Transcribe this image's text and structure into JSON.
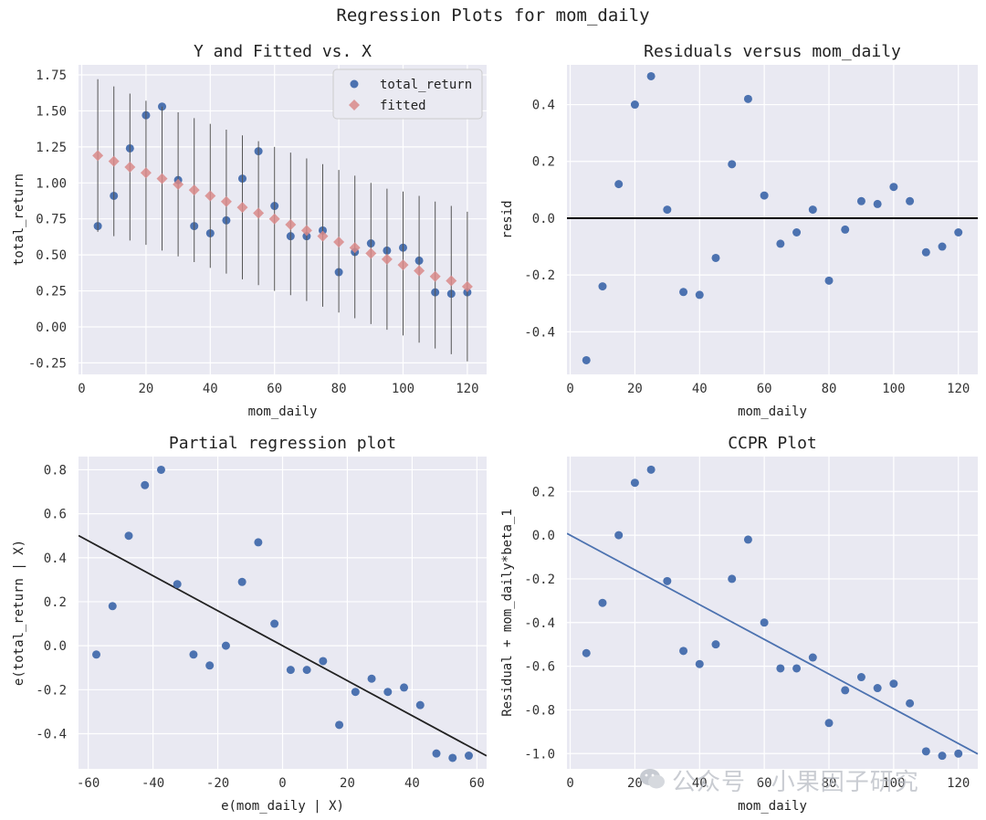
{
  "suptitle": "Regression Plots for mom_daily",
  "watermark": "公众号 · 小果因子研究",
  "colors": {
    "axes_bg": "#e9e9f2",
    "grid": "#ffffff",
    "point": "#4c72b0",
    "fitted": "#dd8452",
    "fitted_marker": "#d98a8a",
    "errbar": "#555555",
    "fitline_black": "#222222",
    "fitline_blue": "#4c72b0"
  },
  "chart_data": [
    {
      "type": "scatter",
      "title": "Y and Fitted vs. X",
      "xlabel": "mom_daily",
      "ylabel": "total_return",
      "xlim": [
        -1,
        126
      ],
      "ylim": [
        -0.33,
        1.82
      ],
      "xticks": [
        0,
        20,
        40,
        60,
        80,
        100,
        120
      ],
      "xtick_labels": [
        "0",
        "20",
        "40",
        "60",
        "80",
        "100",
        "120"
      ],
      "yticks": [
        -0.25,
        0.0,
        0.25,
        0.5,
        0.75,
        1.0,
        1.25,
        1.5,
        1.75
      ],
      "ytick_labels": [
        "-0.25",
        "0.00",
        "0.25",
        "0.50",
        "0.75",
        "1.00",
        "1.25",
        "1.50",
        "1.75"
      ],
      "legend": {
        "placement": "top-right",
        "entries": [
          "total_return",
          "fitted"
        ]
      },
      "series": [
        {
          "name": "total_return",
          "marker": "circle",
          "x": [
            5,
            10,
            15,
            20,
            25,
            30,
            35,
            40,
            45,
            50,
            55,
            60,
            65,
            70,
            75,
            80,
            85,
            90,
            95,
            100,
            105,
            110,
            115,
            120
          ],
          "y": [
            0.7,
            0.91,
            1.24,
            1.47,
            1.53,
            1.02,
            0.7,
            0.65,
            0.74,
            1.03,
            1.22,
            0.84,
            0.63,
            0.63,
            0.67,
            0.38,
            0.52,
            0.58,
            0.53,
            0.55,
            0.46,
            0.24,
            0.23,
            0.24
          ]
        },
        {
          "name": "fitted",
          "marker": "diamond",
          "x": [
            5,
            10,
            15,
            20,
            25,
            30,
            35,
            40,
            45,
            50,
            55,
            60,
            65,
            70,
            75,
            80,
            85,
            90,
            95,
            100,
            105,
            110,
            115,
            120
          ],
          "y": [
            1.19,
            1.15,
            1.11,
            1.07,
            1.03,
            0.99,
            0.95,
            0.91,
            0.87,
            0.83,
            0.79,
            0.75,
            0.71,
            0.67,
            0.63,
            0.59,
            0.55,
            0.51,
            0.47,
            0.43,
            0.39,
            0.35,
            0.32,
            0.28
          ],
          "ci_low": [
            0.66,
            0.63,
            0.6,
            0.57,
            0.53,
            0.49,
            0.45,
            0.41,
            0.37,
            0.33,
            0.29,
            0.25,
            0.22,
            0.18,
            0.14,
            0.1,
            0.06,
            0.02,
            -0.02,
            -0.06,
            -0.11,
            -0.15,
            -0.19,
            -0.24
          ],
          "ci_high": [
            1.72,
            1.67,
            1.62,
            1.57,
            1.53,
            1.49,
            1.45,
            1.41,
            1.37,
            1.33,
            1.29,
            1.25,
            1.21,
            1.17,
            1.13,
            1.09,
            1.05,
            1.0,
            0.96,
            0.94,
            0.91,
            0.87,
            0.84,
            0.8
          ]
        }
      ]
    },
    {
      "type": "scatter",
      "title": "Residuals versus mom_daily",
      "xlabel": "mom_daily",
      "ylabel": "resid",
      "xlim": [
        -1,
        126
      ],
      "ylim": [
        -0.55,
        0.54
      ],
      "xticks": [
        0,
        20,
        40,
        60,
        80,
        100,
        120
      ],
      "xtick_labels": [
        "0",
        "20",
        "40",
        "60",
        "80",
        "100",
        "120"
      ],
      "yticks": [
        -0.4,
        -0.2,
        0.0,
        0.2,
        0.4
      ],
      "ytick_labels": [
        "-0.4",
        "-0.2",
        "0.0",
        "0.2",
        "0.4"
      ],
      "hline": 0.0,
      "series": [
        {
          "x": [
            5,
            10,
            15,
            20,
            25,
            30,
            35,
            40,
            45,
            50,
            55,
            60,
            65,
            70,
            75,
            80,
            85,
            90,
            95,
            100,
            105,
            110,
            115,
            120
          ],
          "y": [
            -0.5,
            -0.24,
            0.12,
            0.4,
            0.5,
            0.03,
            -0.26,
            -0.27,
            -0.14,
            0.19,
            0.42,
            0.08,
            -0.09,
            -0.05,
            0.03,
            -0.22,
            -0.04,
            0.06,
            0.05,
            0.11,
            0.06,
            -0.12,
            -0.1,
            -0.05
          ]
        }
      ]
    },
    {
      "type": "scatter",
      "title": "Partial regression plot",
      "xlabel": "e(mom_daily | X)",
      "ylabel": "e(total_return | X)",
      "xlim": [
        -63,
        63
      ],
      "ylim": [
        -0.56,
        0.86
      ],
      "xticks": [
        -60,
        -40,
        -20,
        0,
        20,
        40,
        60
      ],
      "xtick_labels": [
        "-60",
        "-40",
        "-20",
        "0",
        "20",
        "40",
        "60"
      ],
      "yticks": [
        -0.4,
        -0.2,
        0.0,
        0.2,
        0.4,
        0.6,
        0.8
      ],
      "ytick_labels": [
        "-0.4",
        "-0.2",
        "0.0",
        "0.2",
        "0.4",
        "0.6",
        "0.8"
      ],
      "fit_line": {
        "slope": -0.00795,
        "intercept": 0.0
      },
      "series": [
        {
          "x": [
            -57.5,
            -52.5,
            -47.5,
            -42.5,
            -37.5,
            -32.5,
            -27.5,
            -22.5,
            -17.5,
            -12.5,
            -7.5,
            -2.5,
            2.5,
            7.5,
            12.5,
            17.5,
            22.5,
            27.5,
            32.5,
            37.5,
            42.5,
            47.5,
            52.5,
            57.5
          ],
          "y": [
            -0.04,
            0.18,
            0.5,
            0.73,
            0.8,
            0.28,
            -0.04,
            -0.09,
            0.0,
            0.29,
            0.47,
            0.1,
            -0.11,
            -0.11,
            -0.07,
            -0.36,
            -0.21,
            -0.15,
            -0.21,
            -0.19,
            -0.27,
            -0.49,
            -0.51,
            -0.5
          ]
        }
      ]
    },
    {
      "type": "scatter",
      "title": "CCPR Plot",
      "xlabel": "mom_daily",
      "ylabel": "Residual + mom_daily*beta_1",
      "xlim": [
        -1,
        126
      ],
      "ylim": [
        -1.07,
        0.36
      ],
      "xticks": [
        0,
        20,
        40,
        60,
        80,
        100,
        120
      ],
      "xtick_labels": [
        "0",
        "20",
        "40",
        "60",
        "80",
        "100",
        "120"
      ],
      "yticks": [
        -1.0,
        -0.8,
        -0.6,
        -0.4,
        -0.2,
        0.0,
        0.2
      ],
      "ytick_labels": [
        "-1.0",
        "-0.8",
        "-0.6",
        "-0.4",
        "-0.2",
        "0.0",
        "0.2"
      ],
      "fit_line": {
        "slope": -0.00795,
        "intercept": 0.0
      },
      "series": [
        {
          "x": [
            5,
            10,
            15,
            20,
            25,
            30,
            35,
            40,
            45,
            50,
            55,
            60,
            65,
            70,
            75,
            80,
            85,
            90,
            95,
            100,
            105,
            110,
            115,
            120
          ],
          "y": [
            -0.54,
            -0.31,
            0.0,
            0.24,
            0.3,
            -0.21,
            -0.53,
            -0.59,
            -0.5,
            -0.2,
            -0.02,
            -0.4,
            -0.61,
            -0.61,
            -0.56,
            -0.86,
            -0.71,
            -0.65,
            -0.7,
            -0.68,
            -0.77,
            -0.99,
            -1.01,
            -1.0
          ]
        }
      ]
    }
  ]
}
